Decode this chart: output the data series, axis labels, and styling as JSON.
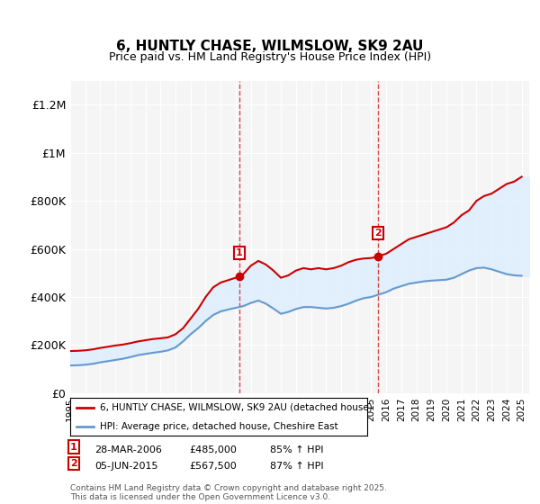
{
  "title": "6, HUNTLY CHASE, WILMSLOW, SK9 2AU",
  "subtitle": "Price paid vs. HM Land Registry's House Price Index (HPI)",
  "ylabel_ticks": [
    "£0",
    "£200K",
    "£400K",
    "£600K",
    "£800K",
    "£1M",
    "£1.2M"
  ],
  "ytick_vals": [
    0,
    200000,
    400000,
    600000,
    800000,
    1000000,
    1200000
  ],
  "ylim": [
    0,
    1300000
  ],
  "xlim_start": 1995.0,
  "xlim_end": 2025.5,
  "legend_line1": "6, HUNTLY CHASE, WILMSLOW, SK9 2AU (detached house)",
  "legend_line2": "HPI: Average price, detached house, Cheshire East",
  "sale1_label": "1",
  "sale1_date": "28-MAR-2006",
  "sale1_price": "£485,000",
  "sale1_hpi": "85% ↑ HPI",
  "sale1_year": 2006.24,
  "sale1_value": 485000,
  "sale2_label": "2",
  "sale2_date": "05-JUN-2015",
  "sale2_price": "£567,500",
  "sale2_hpi": "87% ↑ HPI",
  "sale2_year": 2015.43,
  "sale2_value": 567500,
  "red_color": "#cc0000",
  "blue_color": "#6699cc",
  "fill_color": "#ddeeff",
  "background_color": "#f5f5f5",
  "footer_text": "Contains HM Land Registry data © Crown copyright and database right 2025.\nThis data is licensed under the Open Government Licence v3.0.",
  "red_data": {
    "years": [
      1995.0,
      1995.5,
      1996.0,
      1996.5,
      1997.0,
      1997.5,
      1998.0,
      1998.5,
      1999.0,
      1999.5,
      2000.0,
      2000.5,
      2001.0,
      2001.5,
      2002.0,
      2002.5,
      2003.0,
      2003.5,
      2004.0,
      2004.5,
      2005.0,
      2005.5,
      2006.0,
      2006.24,
      2006.5,
      2007.0,
      2007.5,
      2008.0,
      2008.5,
      2009.0,
      2009.5,
      2010.0,
      2010.5,
      2011.0,
      2011.5,
      2012.0,
      2012.5,
      2013.0,
      2013.5,
      2014.0,
      2014.5,
      2015.0,
      2015.43,
      2015.5,
      2016.0,
      2016.5,
      2017.0,
      2017.5,
      2018.0,
      2018.5,
      2019.0,
      2019.5,
      2020.0,
      2020.5,
      2021.0,
      2021.5,
      2022.0,
      2022.5,
      2023.0,
      2023.5,
      2024.0,
      2024.5,
      2025.0
    ],
    "values": [
      175000,
      176000,
      178000,
      182000,
      188000,
      193000,
      198000,
      202000,
      208000,
      215000,
      220000,
      225000,
      228000,
      232000,
      245000,
      270000,
      310000,
      350000,
      400000,
      440000,
      460000,
      470000,
      480000,
      485000,
      495000,
      530000,
      550000,
      535000,
      510000,
      480000,
      490000,
      510000,
      520000,
      515000,
      520000,
      515000,
      520000,
      530000,
      545000,
      555000,
      560000,
      562000,
      567500,
      570000,
      580000,
      600000,
      620000,
      640000,
      650000,
      660000,
      670000,
      680000,
      690000,
      710000,
      740000,
      760000,
      800000,
      820000,
      830000,
      850000,
      870000,
      880000,
      900000
    ]
  },
  "blue_data": {
    "years": [
      1995.0,
      1995.5,
      1996.0,
      1996.5,
      1997.0,
      1997.5,
      1998.0,
      1998.5,
      1999.0,
      1999.5,
      2000.0,
      2000.5,
      2001.0,
      2001.5,
      2002.0,
      2002.5,
      2003.0,
      2003.5,
      2004.0,
      2004.5,
      2005.0,
      2005.5,
      2006.0,
      2006.5,
      2007.0,
      2007.5,
      2008.0,
      2008.5,
      2009.0,
      2009.5,
      2010.0,
      2010.5,
      2011.0,
      2011.5,
      2012.0,
      2012.5,
      2013.0,
      2013.5,
      2014.0,
      2014.5,
      2015.0,
      2015.5,
      2016.0,
      2016.5,
      2017.0,
      2017.5,
      2018.0,
      2018.5,
      2019.0,
      2019.5,
      2020.0,
      2020.5,
      2021.0,
      2021.5,
      2022.0,
      2022.5,
      2023.0,
      2023.5,
      2024.0,
      2024.5,
      2025.0
    ],
    "values": [
      115000,
      116000,
      118000,
      122000,
      128000,
      133000,
      138000,
      143000,
      150000,
      158000,
      163000,
      168000,
      172000,
      178000,
      190000,
      215000,
      245000,
      270000,
      300000,
      325000,
      340000,
      348000,
      355000,
      362000,
      375000,
      385000,
      372000,
      352000,
      330000,
      338000,
      350000,
      358000,
      358000,
      355000,
      352000,
      355000,
      362000,
      372000,
      385000,
      395000,
      400000,
      410000,
      420000,
      435000,
      445000,
      455000,
      460000,
      465000,
      468000,
      470000,
      472000,
      480000,
      495000,
      510000,
      520000,
      522000,
      515000,
      505000,
      495000,
      490000,
      488000
    ]
  }
}
